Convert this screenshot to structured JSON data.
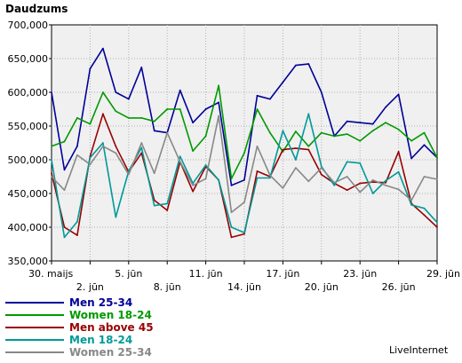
{
  "chart_data": {
    "type": "line",
    "ylabel": "Daudzums",
    "credit": "LiveInternet",
    "ylim": [
      350000,
      700000
    ],
    "yticks": [
      350000,
      400000,
      450000,
      500000,
      550000,
      600000,
      650000,
      700000
    ],
    "ytick_labels": [
      "350,000",
      "400,000",
      "450,000",
      "500,000",
      "550,000",
      "600,000",
      "650,000",
      "700,000"
    ],
    "xtick_labels": [
      {
        "i": 0,
        "label": "30. maijs"
      },
      {
        "i": 3,
        "label": "2. jūn"
      },
      {
        "i": 6,
        "label": "5. jūn"
      },
      {
        "i": 9,
        "label": "8. jūn"
      },
      {
        "i": 12,
        "label": "11. jūn"
      },
      {
        "i": 15,
        "label": "14. jūn"
      },
      {
        "i": 18,
        "label": "17. jūn"
      },
      {
        "i": 21,
        "label": "20. jūn"
      },
      {
        "i": 24,
        "label": "23. jūn"
      },
      {
        "i": 27,
        "label": "26. jūn"
      },
      {
        "i": 30,
        "label": "29. jūn"
      }
    ],
    "series": [
      {
        "name": "Men 25-34",
        "color": "#000099",
        "values": [
          600000,
          485000,
          520000,
          635000,
          665000,
          600000,
          590000,
          637000,
          543000,
          540000,
          603000,
          555000,
          575000,
          585000,
          462000,
          470000,
          595000,
          590000,
          615000,
          640000,
          642000,
          600000,
          535000,
          557000,
          555000,
          553000,
          578000,
          597000,
          502000,
          522000,
          503000
        ]
      },
      {
        "name": "Women 18-24",
        "color": "#009900",
        "values": [
          520000,
          527000,
          562000,
          553000,
          600000,
          572000,
          562000,
          562000,
          557000,
          575000,
          575000,
          513000,
          535000,
          610000,
          472000,
          510000,
          575000,
          540000,
          512000,
          542000,
          520000,
          540000,
          535000,
          538000,
          528000,
          543000,
          555000,
          545000,
          528000,
          540000,
          503000
        ]
      },
      {
        "name": "Men above 45",
        "color": "#990000",
        "values": [
          480000,
          400000,
          388000,
          505000,
          568000,
          520000,
          482000,
          510000,
          440000,
          425000,
          497000,
          453000,
          490000,
          470000,
          385000,
          390000,
          483000,
          475000,
          515000,
          517000,
          515000,
          478000,
          465000,
          455000,
          465000,
          467000,
          466000,
          512000,
          435000,
          418000,
          400000
        ]
      },
      {
        "name": "Men 18-24",
        "color": "#009999",
        "values": [
          500000,
          385000,
          408000,
          503000,
          525000,
          415000,
          483000,
          518000,
          432000,
          435000,
          505000,
          465000,
          492000,
          470000,
          400000,
          392000,
          473000,
          473000,
          543000,
          500000,
          568000,
          490000,
          462000,
          497000,
          495000,
          450000,
          469000,
          482000,
          433000,
          428000,
          407000
        ]
      },
      {
        "name": "Women 25-34",
        "color": "#888888",
        "values": [
          475000,
          455000,
          507000,
          493000,
          520000,
          510000,
          478000,
          525000,
          480000,
          540000,
          497000,
          462000,
          472000,
          565000,
          422000,
          437000,
          520000,
          477000,
          458000,
          488000,
          468000,
          488000,
          466000,
          475000,
          452000,
          470000,
          462000,
          456000,
          440000,
          475000,
          471000
        ]
      }
    ]
  }
}
